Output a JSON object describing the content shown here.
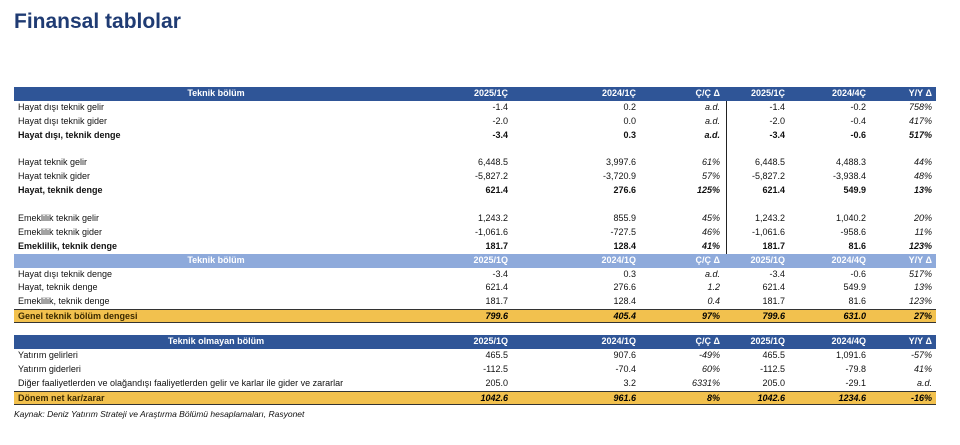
{
  "title": "Finansal tablolar",
  "source": "Kaynak: Deniz Yatırım Strateji ve Araştırma Bölümü hesaplamaları, Rasyonet",
  "section1": {
    "header": {
      "label": "Teknik bölüm",
      "c1": "2025/1Ç",
      "c2": "2024/1Ç",
      "c3": "Ç/Ç Δ",
      "c4": "2025/1Ç",
      "c5": "2024/4Ç",
      "c6": "Y/Y Δ"
    },
    "rows": [
      {
        "label": "Hayat dışı teknik gelir",
        "c1": "-1.4",
        "c2": "0.2",
        "c3": "a.d.",
        "c4": "-1.4",
        "c5": "-0.2",
        "c6": "758%"
      },
      {
        "label": "Hayat dışı teknik gider",
        "c1": "-2.0",
        "c2": "0.0",
        "c3": "a.d.",
        "c4": "-2.0",
        "c5": "-0.4",
        "c6": "417%"
      },
      {
        "label": "Hayat dışı, teknik denge",
        "c1": "-3.4",
        "c2": "0.3",
        "c3": "a.d.",
        "c4": "-3.4",
        "c5": "-0.6",
        "c6": "517%"
      },
      {
        "label": "Hayat teknik gelir",
        "c1": "6,448.5",
        "c2": "3,997.6",
        "c3": "61%",
        "c4": "6,448.5",
        "c5": "4,488.3",
        "c6": "44%"
      },
      {
        "label": "Hayat teknik gider",
        "c1": "-5,827.2",
        "c2": "-3,720.9",
        "c3": "57%",
        "c4": "-5,827.2",
        "c5": "-3,938.4",
        "c6": "48%"
      },
      {
        "label": "Hayat, teknik denge",
        "c1": "621.4",
        "c2": "276.6",
        "c3": "125%",
        "c4": "621.4",
        "c5": "549.9",
        "c6": "13%"
      },
      {
        "label": "Emeklilik teknik gelir",
        "c1": "1,243.2",
        "c2": "855.9",
        "c3": "45%",
        "c4": "1,243.2",
        "c5": "1,040.2",
        "c6": "20%"
      },
      {
        "label": "Emeklilik teknik gider",
        "c1": "-1,061.6",
        "c2": "-727.5",
        "c3": "46%",
        "c4": "-1,061.6",
        "c5": "-958.6",
        "c6": "11%"
      },
      {
        "label": "Emeklilik, teknik denge",
        "c1": "181.7",
        "c2": "128.4",
        "c3": "41%",
        "c4": "181.7",
        "c5": "81.6",
        "c6": "123%"
      }
    ]
  },
  "section2": {
    "header": {
      "label": "Teknik bölüm",
      "c1": "2025/1Q",
      "c2": "2024/1Q",
      "c3": "Ç/Ç Δ",
      "c4": "2025/1Q",
      "c5": "2024/4Q",
      "c6": "Y/Y Δ"
    },
    "rows": [
      {
        "label": "Hayat dışı teknik denge",
        "c1": "-3.4",
        "c2": "0.3",
        "c3": "a.d.",
        "c4": "-3.4",
        "c5": "-0.6",
        "c6": "517%"
      },
      {
        "label": "Hayat, teknik denge",
        "c1": "621.4",
        "c2": "276.6",
        "c3": "1.2",
        "c4": "621.4",
        "c5": "549.9",
        "c6": "13%"
      },
      {
        "label": "Emeklilik, teknik denge",
        "c1": "181.7",
        "c2": "128.4",
        "c3": "0.4",
        "c4": "181.7",
        "c5": "81.6",
        "c6": "123%"
      }
    ],
    "total": {
      "label": "Genel teknik bölüm dengesi",
      "c1": "799.6",
      "c2": "405.4",
      "c3": "97%",
      "c4": "799.6",
      "c5": "631.0",
      "c6": "27%"
    }
  },
  "section3": {
    "header": {
      "label": "Teknik olmayan bölüm",
      "c1": "2025/1Q",
      "c2": "2024/1Q",
      "c3": "Ç/Ç Δ",
      "c4": "2025/1Q",
      "c5": "2024/4Q",
      "c6": "Y/Y Δ"
    },
    "rows": [
      {
        "label": "Yatırım gelirleri",
        "c1": "465.5",
        "c2": "907.6",
        "c3": "-49%",
        "c4": "465.5",
        "c5": "1,091.6",
        "c6": "-57%"
      },
      {
        "label": "Yatırım giderleri",
        "c1": "-112.5",
        "c2": "-70.4",
        "c3": "60%",
        "c4": "-112.5",
        "c5": "-79.8",
        "c6": "41%"
      },
      {
        "label": "Diğer faaliyetlerden ve olağandışı faaliyetlerden gelir ve karlar ile gider ve zararlar",
        "c1": "205.0",
        "c2": "3.2",
        "c3": "6331%",
        "c4": "205.0",
        "c5": "-29.1",
        "c6": "a.d."
      }
    ],
    "total": {
      "label": "Dönem net kar/zarar",
      "c1": "1042.6",
      "c2": "961.6",
      "c3": "8%",
      "c4": "1042.6",
      "c5": "1234.6",
      "c6": "-16%"
    }
  }
}
